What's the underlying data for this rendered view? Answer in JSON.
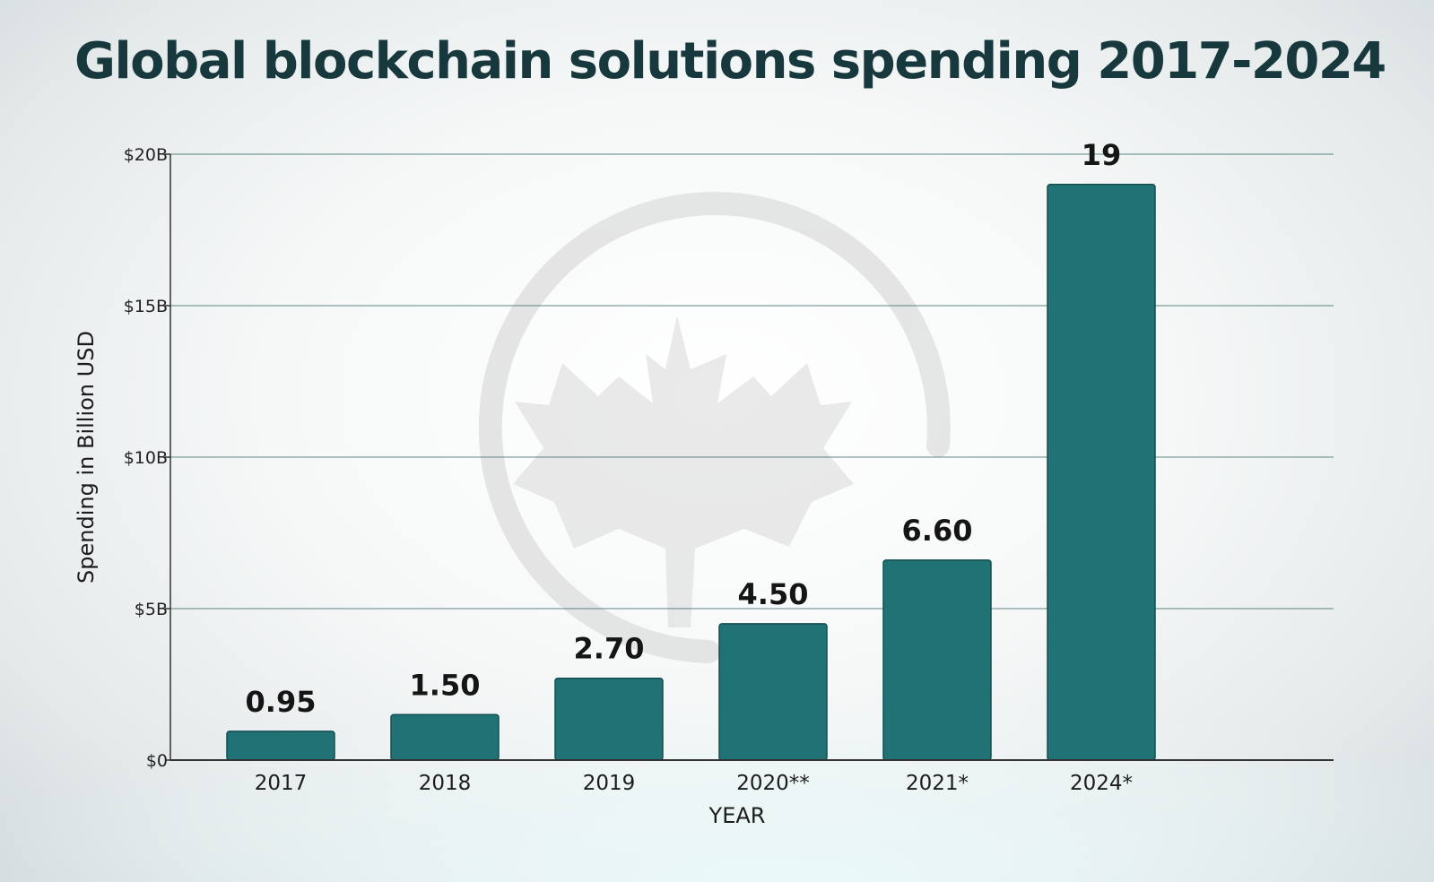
{
  "colors": {
    "bar_fill": "#217275",
    "bar_stroke": "#134e50",
    "gridline": "#2f5e5e",
    "title": "#17383c",
    "watermark": "#b8b8b8"
  },
  "watermark_icon": "maple-leaf-ring-logo",
  "chart_data": {
    "type": "bar",
    "title": "Global blockchain solutions spending 2017-2024",
    "xlabel": "YEAR",
    "ylabel": "Spending in Billion USD",
    "categories": [
      "2017",
      "2018",
      "2019",
      "2020**",
      "2021*",
      "2024*"
    ],
    "values": [
      0.95,
      1.5,
      2.7,
      4.5,
      6.6,
      19
    ],
    "value_labels": [
      "0.95",
      "1.50",
      "2.70",
      "4.50",
      "6.60",
      "19"
    ],
    "ylim": [
      0,
      20
    ],
    "yticks": [
      0,
      5,
      10,
      15,
      20
    ],
    "ytick_labels": [
      "$0",
      "$5B",
      "$10B",
      "$15B",
      "$20B"
    ],
    "grid": true,
    "legend": "none"
  }
}
